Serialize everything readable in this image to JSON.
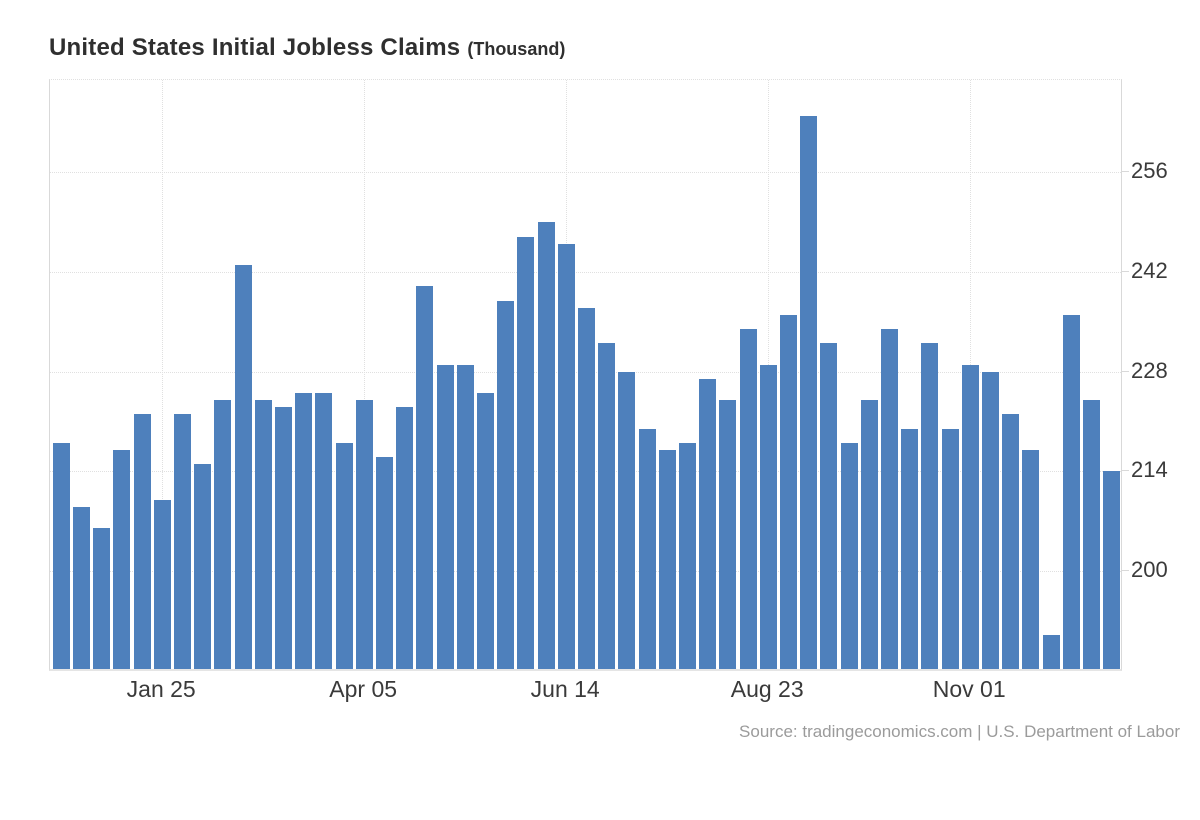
{
  "title": {
    "main": "United States Initial Jobless Claims",
    "unit": "(Thousand)"
  },
  "source": {
    "text": "Source: tradingeconomics.com | U.S. Department of Labor"
  },
  "chart_data": {
    "type": "bar",
    "title": "United States Initial Jobless Claims",
    "ylabel_unit": "Thousand",
    "values": [
      218,
      209,
      206,
      217,
      222,
      210,
      222,
      215,
      224,
      243,
      224,
      223,
      225,
      225,
      218,
      224,
      216,
      223,
      240,
      229,
      229,
      225,
      238,
      247,
      249,
      246,
      237,
      232,
      228,
      220,
      217,
      218,
      227,
      224,
      234,
      229,
      236,
      264,
      232,
      218,
      224,
      234,
      220,
      232,
      220,
      229,
      228,
      222,
      217,
      191,
      236,
      224,
      214
    ],
    "x_tick_positions": [
      5,
      15,
      25,
      35,
      45
    ],
    "x_tick_labels": [
      "Jan 25",
      "Apr 05",
      "Jun 14",
      "Aug 23",
      "Nov 01"
    ],
    "y_ticks": [
      200,
      214,
      228,
      242,
      256
    ],
    "ylim": [
      186.2,
      269.0
    ],
    "grid": true,
    "legend_position": "none",
    "bar_color": "#4e80bc",
    "grid_color": "#e0e0e0",
    "axis_color": "#d9d9d9",
    "label_color": "#3a3a3a",
    "source_color": "#9b9b9b"
  }
}
